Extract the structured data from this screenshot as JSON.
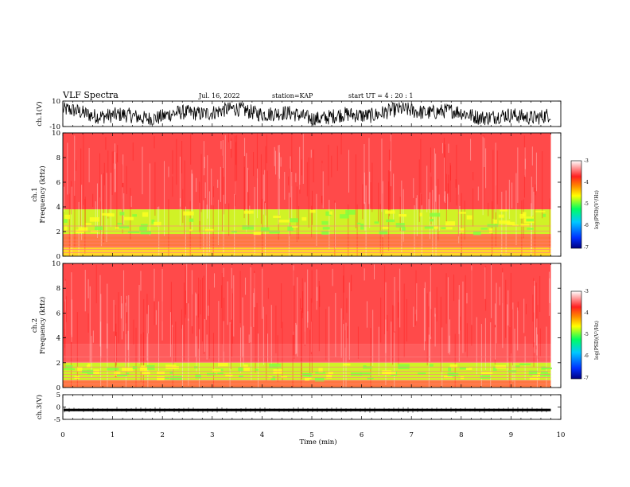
{
  "header": {
    "title": "VLF Spectra",
    "date": "Jul. 16, 2022",
    "station": "station=KAP",
    "start_ut": "start UT =  4 : 20 : 1"
  },
  "chart_data": [
    {
      "type": "line",
      "panel": "ch1-waveform",
      "ylabel": "ch.1(V)",
      "ylim": [
        -10,
        10
      ],
      "y_ticks": [
        "10",
        "-10"
      ],
      "xlim": [
        0,
        10
      ],
      "data_end_min": 9.8,
      "amplitude_range_approx": [
        -9,
        9
      ]
    },
    {
      "type": "heatmap",
      "panel": "ch1-spectrogram",
      "ylabel": "ch.1\nFrequency (kHz)",
      "ylim": [
        0,
        10
      ],
      "y_ticks": [
        "0",
        "2",
        "4",
        "6",
        "8",
        "10"
      ],
      "xlim": [
        0,
        10
      ],
      "data_end_min": 9.8,
      "colorbar_label": "log(PSD)(V²/Hz)",
      "colorbar_ticks": [
        "-3",
        "-4",
        "-5",
        "-6",
        "-7"
      ],
      "bands": [
        {
          "freq_khz": [
            3.8,
            10
          ],
          "level": -3.3
        },
        {
          "freq_khz": [
            1.8,
            3.8
          ],
          "level": -4.6
        },
        {
          "freq_khz": [
            0.7,
            1.8
          ],
          "level": -3.9
        },
        {
          "freq_khz": [
            0,
            0.7
          ],
          "level": -4.3
        }
      ]
    },
    {
      "type": "heatmap",
      "panel": "ch2-spectrogram",
      "ylabel": "ch.2\nFrequency (kHz)",
      "ylim": [
        0,
        10
      ],
      "y_ticks": [
        "0",
        "2",
        "4",
        "6",
        "8",
        "10"
      ],
      "xlim": [
        0,
        10
      ],
      "data_end_min": 9.8,
      "colorbar_label": "log(PSD)(V²/Hz)",
      "colorbar_ticks": [
        "-3",
        "-4",
        "-5",
        "-6",
        "-7"
      ],
      "bands": [
        {
          "freq_khz": [
            3.5,
            10
          ],
          "level": -3.1
        },
        {
          "freq_khz": [
            2.0,
            3.5
          ],
          "level": -3.6
        },
        {
          "freq_khz": [
            0.6,
            2.0
          ],
          "level": -4.7
        },
        {
          "freq_khz": [
            0,
            0.6
          ],
          "level": -4.2
        }
      ]
    },
    {
      "type": "line",
      "panel": "ch3-waveform",
      "ylabel": "ch.3(V)",
      "ylim": [
        -5,
        5
      ],
      "y_ticks": [
        "5",
        "0",
        "-5"
      ],
      "xlim": [
        0,
        10
      ],
      "data_end_min": 9.8,
      "baseline_v": -1.2,
      "amplitude_range_approx": [
        -1.7,
        -0.7
      ]
    }
  ],
  "x_axis": {
    "label": "Time (min)",
    "ticks": [
      "0",
      "1",
      "2",
      "3",
      "4",
      "5",
      "6",
      "7",
      "8",
      "9",
      "10"
    ]
  },
  "colors": {
    "colormap": [
      "#000080",
      "#0050ff",
      "#00c8ff",
      "#00ff80",
      "#ffff00",
      "#ff3030",
      "#ffffff"
    ],
    "waveform": "#000000"
  }
}
